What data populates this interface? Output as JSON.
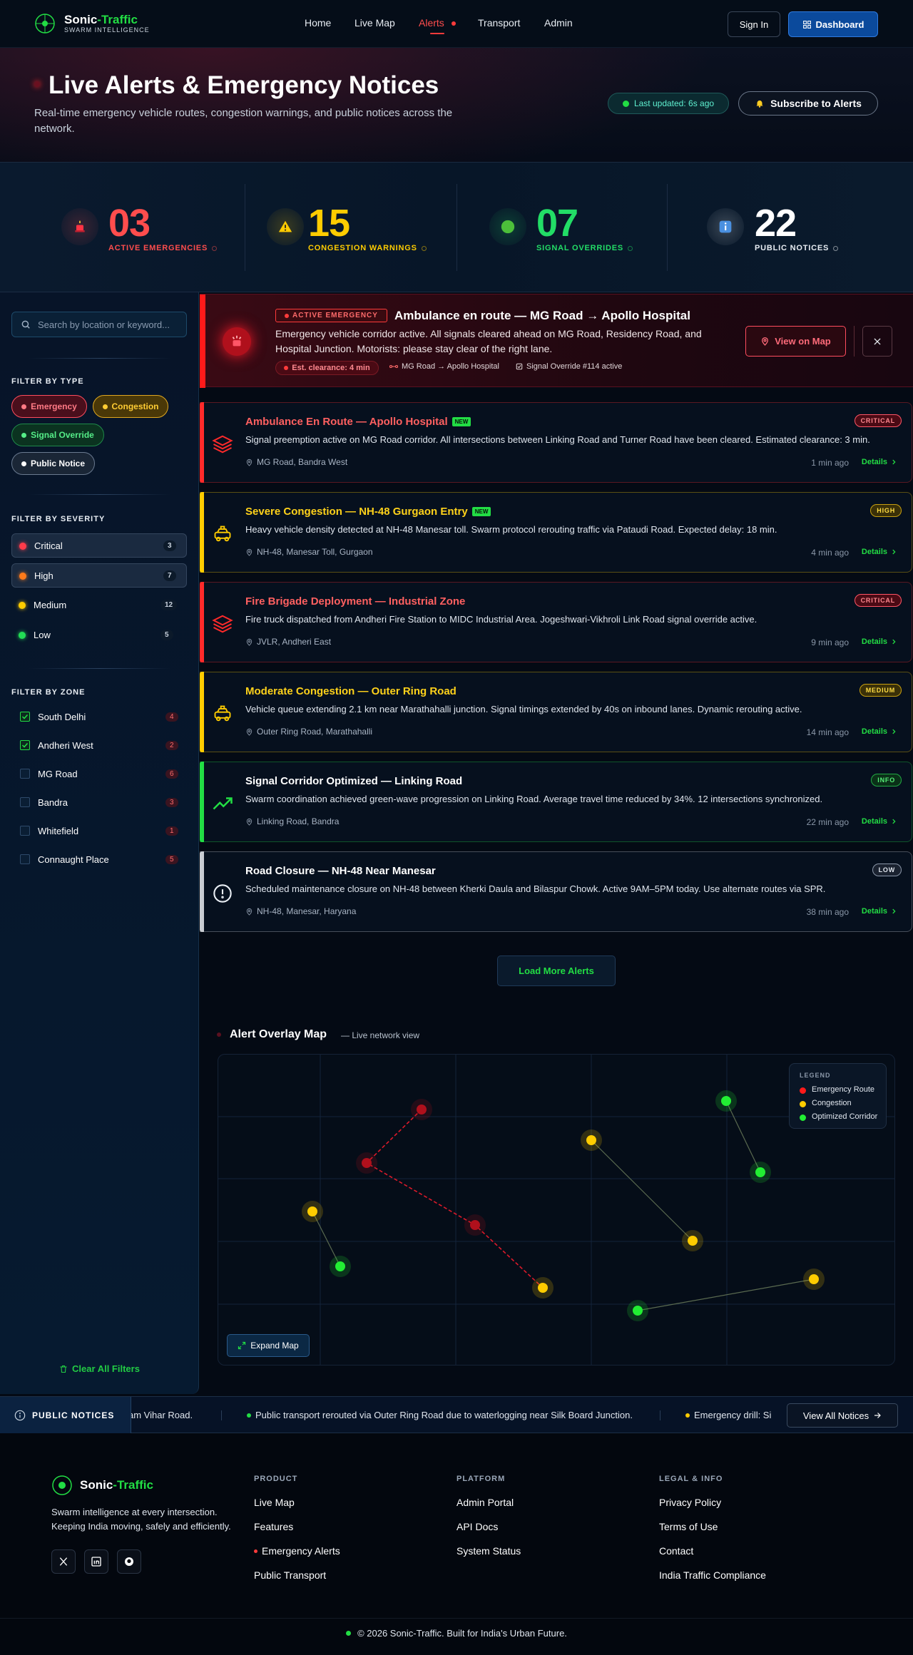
{
  "nav": {
    "brand_a": "Sonic",
    "brand_b": "-Traffic",
    "tagline": "SWARM INTELLIGENCE",
    "links": [
      "Home",
      "Live Map",
      "Alerts",
      "Transport",
      "Admin"
    ],
    "sign_in": "Sign In",
    "dashboard": "Dashboard"
  },
  "hero": {
    "title": "Live Alerts & Emergency Notices",
    "subtitle": "Real-time emergency vehicle routes, congestion warnings, and public notices across the network.",
    "updated": "Last updated: 6s ago",
    "subscribe": "Subscribe to Alerts"
  },
  "stats": [
    {
      "value": "03",
      "label": "ACTIVE EMERGENCIES",
      "color": "#ff4d4d"
    },
    {
      "value": "15",
      "label": "CONGESTION WARNINGS",
      "color": "#ffcc00"
    },
    {
      "value": "07",
      "label": "SIGNAL OVERRIDES",
      "color": "#22dd66"
    },
    {
      "value": "22",
      "label": "PUBLIC NOTICES",
      "color": "#ffffff"
    }
  ],
  "sidebar": {
    "search_placeholder": "Search by location or keyword...",
    "type_heading": "FILTER BY TYPE",
    "types": [
      "Emergency",
      "Congestion",
      "Signal Override",
      "Public Notice"
    ],
    "severity_heading": "FILTER BY SEVERITY",
    "severities": [
      {
        "label": "Critical",
        "count": 3
      },
      {
        "label": "High",
        "count": 7
      },
      {
        "label": "Medium",
        "count": 12
      },
      {
        "label": "Low",
        "count": 5
      }
    ],
    "zone_heading": "FILTER BY ZONE",
    "zones": [
      {
        "label": "South Delhi",
        "count": 4,
        "checked": true
      },
      {
        "label": "Andheri West",
        "count": 2,
        "checked": true
      },
      {
        "label": "MG Road",
        "count": 6,
        "checked": false
      },
      {
        "label": "Bandra",
        "count": 3,
        "checked": false
      },
      {
        "label": "Whitefield",
        "count": 1,
        "checked": false
      },
      {
        "label": "Connaught Place",
        "count": 5,
        "checked": false
      }
    ],
    "clear": "Clear All Filters"
  },
  "banner": {
    "tag": "ACTIVE EMERGENCY",
    "title": "Ambulance en route — MG Road → Apollo Hospital",
    "text": "Emergency vehicle corridor active. All signals cleared ahead on MG Road, Residency Road, and Hospital Junction. Motorists: please stay clear of the right lane.",
    "clearance": "Est. clearance: 4 min",
    "route": "MG Road → Apollo Hospital",
    "override": "Signal Override #114 active",
    "view": "View on Map"
  },
  "alerts": [
    {
      "title": "Ambulance En Route — Apollo Hospital",
      "badge": "NEW",
      "severity": "CRITICAL",
      "color": "#ff2a2a",
      "text": "Signal preemption active on MG Road corridor. All intersections between Linking Road and Turner Road have been cleared. Estimated clearance: 3 min.",
      "location": "MG Road, Bandra West",
      "time": "1 min ago",
      "details": "Details"
    },
    {
      "title": "Severe Congestion — NH-48 Gurgaon Entry",
      "badge": "NEW",
      "severity": "HIGH",
      "color": "#ffcc00",
      "text": "Heavy vehicle density detected at NH-48 Manesar toll. Swarm protocol rerouting traffic via Pataudi Road. Expected delay: 18 min.",
      "location": "NH-48, Manesar Toll, Gurgaon",
      "time": "4 min ago",
      "details": "Details"
    },
    {
      "title": "Fire Brigade Deployment — Industrial Zone",
      "severity": "CRITICAL",
      "color": "#ff2a2a",
      "text": "Fire truck dispatched from Andheri Fire Station to MIDC Industrial Area. Jogeshwari-Vikhroli Link Road signal override active.",
      "location": "JVLR, Andheri East",
      "time": "9 min ago",
      "details": "Details"
    },
    {
      "title": "Moderate Congestion — Outer Ring Road",
      "severity": "MEDIUM",
      "color": "#ffcc00",
      "text": "Vehicle queue extending 2.1 km near Marathahalli junction. Signal timings extended by 40s on inbound lanes. Dynamic rerouting active.",
      "location": "Outer Ring Road, Marathahalli",
      "time": "14 min ago",
      "details": "Details"
    },
    {
      "title": "Signal Corridor Optimized — Linking Road",
      "severity": "INFO",
      "color": "#22dd44",
      "text": "Swarm coordination achieved green-wave progression on Linking Road. Average travel time reduced by 34%. 12 intersections synchronized.",
      "location": "Linking Road, Bandra",
      "time": "22 min ago",
      "details": "Details"
    },
    {
      "title": "Road Closure — NH-48 Near Manesar",
      "severity": "LOW",
      "color": "#c8ccd2",
      "text": "Scheduled maintenance closure on NH-48 between Kherki Daula and Bilaspur Chowk. Active 9AM–5PM today. Use alternate routes via SPR.",
      "location": "NH-48, Manesar, Haryana",
      "time": "38 min ago",
      "details": "Details"
    }
  ],
  "load_more": "Load More Alerts",
  "map": {
    "title": "Alert Overlay Map",
    "subtitle": "— Live network view",
    "legend_title": "LEGEND",
    "legend": [
      "Emergency Route",
      "Congestion",
      "Optimized Corridor"
    ],
    "expand": "Expand Map"
  },
  "ticker": {
    "label": "PUBLIC NOTICES",
    "items": [
      "am Vihar Road.",
      "Public transport rerouted via Outer Ring Road due to waterlogging near Silk Board Junction.",
      "Emergency drill: Si"
    ],
    "view_all": "View All Notices"
  },
  "footer": {
    "brand_a": "Sonic",
    "brand_b": "-Traffic",
    "description": "Swarm intelligence at every intersection. Keeping India moving, safely and efficiently.",
    "columns": [
      {
        "heading": "PRODUCT",
        "links": [
          "Live Map",
          "Features",
          "Emergency Alerts",
          "Public Transport"
        ]
      },
      {
        "heading": "PLATFORM",
        "links": [
          "Admin Portal",
          "API Docs",
          "System Status"
        ]
      },
      {
        "heading": "LEGAL & INFO",
        "links": [
          "Privacy Policy",
          "Terms of Use",
          "Contact",
          "India Traffic Compliance"
        ]
      }
    ],
    "copyright": "© 2026 Sonic-Traffic. Built for India's Urban Future."
  }
}
